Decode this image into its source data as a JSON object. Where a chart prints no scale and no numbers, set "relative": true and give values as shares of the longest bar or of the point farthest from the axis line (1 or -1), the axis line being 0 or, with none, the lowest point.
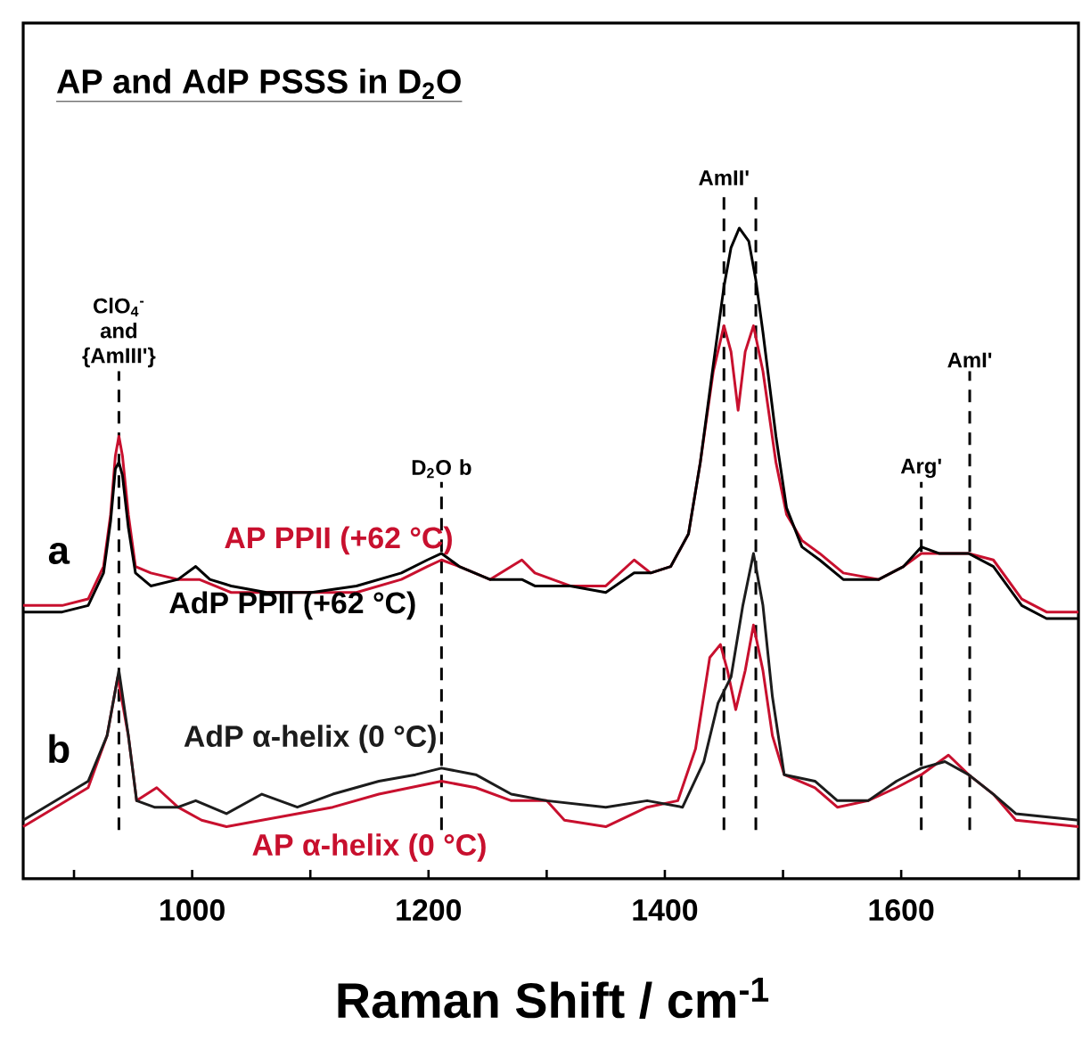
{
  "chart_data": {
    "type": "line",
    "title": "AP and AdP PSSS in D$_{2}$O",
    "xlabel": "Raman Shift / cm$^{-1}$",
    "relative": true,
    "xlim": [
      857,
      1750
    ],
    "xticks": [
      {
        "value": 900,
        "label": null
      },
      1000,
      {
        "value": 1100,
        "label": null
      },
      1200,
      {
        "value": 1300,
        "label": null
      },
      1400,
      {
        "value": 1500,
        "label": null
      },
      1600,
      {
        "value": 1700,
        "label": null
      }
    ],
    "legend": false,
    "grid": false,
    "marker": "none",
    "line_style": "solid",
    "series": [
      {
        "name": "AP PPII (+62 °C)",
        "color": "#c8102e",
        "x": [
          857,
          890,
          912,
          925,
          931,
          935,
          938,
          941,
          946,
          952,
          965,
          988,
          1006,
          1033,
          1063,
          1101,
          1139,
          1177,
          1199,
          1211,
          1226,
          1252,
          1279,
          1290,
          1320,
          1350,
          1374,
          1388,
          1405,
          1420,
          1430,
          1441,
          1450,
          1456,
          1462,
          1468,
          1475,
          1483,
          1494,
          1503,
          1516,
          1531,
          1551,
          1581,
          1602,
          1617,
          1632,
          1657,
          1678,
          1702,
          1723,
          1750
        ],
        "values": [
          0.42,
          0.42,
          0.43,
          0.48,
          0.56,
          0.65,
          0.68,
          0.65,
          0.56,
          0.48,
          0.47,
          0.46,
          0.46,
          0.44,
          0.44,
          0.44,
          0.44,
          0.46,
          0.48,
          0.49,
          0.48,
          0.46,
          0.49,
          0.47,
          0.45,
          0.45,
          0.49,
          0.47,
          0.48,
          0.53,
          0.64,
          0.78,
          0.85,
          0.81,
          0.72,
          0.81,
          0.85,
          0.78,
          0.64,
          0.56,
          0.52,
          0.5,
          0.47,
          0.46,
          0.48,
          0.5,
          0.5,
          0.5,
          0.49,
          0.43,
          0.41,
          0.41
        ]
      },
      {
        "name": "AdP PPII (+62 °C)",
        "color": "#000000",
        "x": [
          857,
          890,
          912,
          925,
          931,
          935,
          938,
          941,
          946,
          952,
          965,
          988,
          1003,
          1015,
          1033,
          1063,
          1101,
          1139,
          1177,
          1199,
          1211,
          1226,
          1252,
          1279,
          1290,
          1320,
          1350,
          1374,
          1388,
          1405,
          1420,
          1430,
          1441,
          1450,
          1456,
          1463,
          1471,
          1477,
          1483,
          1494,
          1503,
          1516,
          1531,
          1551,
          1581,
          1602,
          1617,
          1632,
          1657,
          1678,
          1702,
          1723,
          1750
        ],
        "values": [
          0.41,
          0.41,
          0.42,
          0.47,
          0.55,
          0.63,
          0.64,
          0.62,
          0.54,
          0.47,
          0.45,
          0.46,
          0.48,
          0.46,
          0.45,
          0.44,
          0.44,
          0.45,
          0.47,
          0.49,
          0.5,
          0.48,
          0.46,
          0.46,
          0.45,
          0.45,
          0.44,
          0.47,
          0.47,
          0.48,
          0.53,
          0.64,
          0.79,
          0.91,
          0.97,
          1.0,
          0.98,
          0.92,
          0.84,
          0.68,
          0.57,
          0.51,
          0.49,
          0.46,
          0.46,
          0.48,
          0.51,
          0.5,
          0.5,
          0.48,
          0.42,
          0.4,
          0.4
        ]
      },
      {
        "name": "AP α-helix (0 °C)",
        "color": "#c8102e",
        "x": [
          857,
          912,
          928,
          937,
          946,
          953,
          970,
          988,
          1008,
          1029,
          1059,
          1089,
          1119,
          1158,
          1211,
          1240,
          1270,
          1300,
          1315,
          1350,
          1385,
          1411,
          1426,
          1438,
          1447,
          1453,
          1460,
          1468,
          1475,
          1483,
          1491,
          1501,
          1527,
          1546,
          1572,
          1596,
          1617,
          1640,
          1657,
          1678,
          1697,
          1750
        ],
        "values": [
          0.08,
          0.14,
          0.22,
          0.31,
          0.22,
          0.12,
          0.14,
          0.11,
          0.09,
          0.08,
          0.09,
          0.1,
          0.11,
          0.13,
          0.15,
          0.14,
          0.12,
          0.12,
          0.09,
          0.08,
          0.11,
          0.12,
          0.2,
          0.34,
          0.36,
          0.32,
          0.26,
          0.32,
          0.39,
          0.32,
          0.22,
          0.16,
          0.14,
          0.11,
          0.12,
          0.14,
          0.16,
          0.19,
          0.16,
          0.13,
          0.09,
          0.08
        ]
      },
      {
        "name": "AdP α-helix (0 °C)",
        "color": "#1c1c1c",
        "x": [
          857,
          912,
          928,
          938,
          946,
          953,
          968,
          988,
          1003,
          1029,
          1059,
          1089,
          1119,
          1158,
          1189,
          1211,
          1240,
          1270,
          1300,
          1350,
          1385,
          1415,
          1433,
          1445,
          1456,
          1466,
          1475,
          1483,
          1491,
          1501,
          1527,
          1546,
          1572,
          1596,
          1617,
          1637,
          1657,
          1678,
          1697,
          1750
        ],
        "values": [
          0.09,
          0.15,
          0.22,
          0.32,
          0.22,
          0.12,
          0.11,
          0.11,
          0.12,
          0.1,
          0.13,
          0.11,
          0.13,
          0.15,
          0.16,
          0.17,
          0.16,
          0.13,
          0.12,
          0.11,
          0.12,
          0.11,
          0.18,
          0.27,
          0.31,
          0.42,
          0.5,
          0.42,
          0.28,
          0.16,
          0.15,
          0.12,
          0.12,
          0.15,
          0.17,
          0.18,
          0.16,
          0.13,
          0.1,
          0.09
        ]
      }
    ],
    "ref_lines": [
      {
        "axis": "x",
        "value": 938,
        "label": "ClO$_{4}$$^{-}$ and {AmIII'}",
        "color": "#000000",
        "line_style": "dashed"
      },
      {
        "axis": "x",
        "value": 1211,
        "label": "D$_{2}$O b",
        "color": "#000000",
        "line_style": "dashed"
      },
      {
        "axis": "x",
        "value": 1450,
        "label": "AmII'",
        "color": "#000000",
        "line_style": "dashed"
      },
      {
        "axis": "x",
        "value": 1477,
        "label": null,
        "color": "#000000",
        "line_style": "dashed"
      },
      {
        "axis": "x",
        "value": 1617,
        "label": "Arg'",
        "color": "#000000",
        "line_style": "dashed"
      },
      {
        "axis": "x",
        "value": 1658,
        "label": "AmI'",
        "color": "#000000",
        "line_style": "dashed"
      }
    ],
    "annotations": [
      "a",
      "b"
    ]
  }
}
